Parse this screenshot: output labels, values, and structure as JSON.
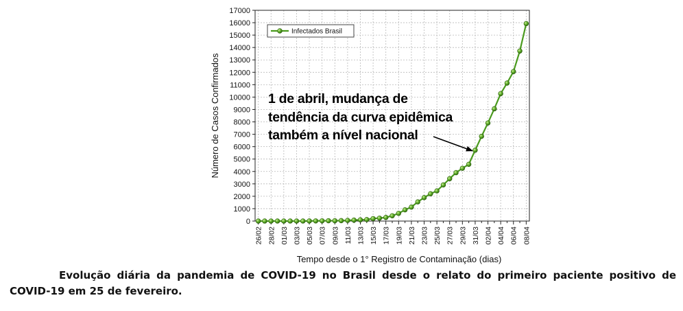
{
  "chart_data": {
    "type": "line",
    "xlabel": "Tempo desde o 1° Registro de Contaminação (dias)",
    "ylabel": "Número de Casos Confirmados",
    "ylim": [
      0,
      17000
    ],
    "yticks": [
      0,
      1000,
      2000,
      3000,
      4000,
      5000,
      6000,
      7000,
      8000,
      9000,
      10000,
      11000,
      12000,
      13000,
      14000,
      15000,
      16000,
      17000
    ],
    "categories": [
      "26/02",
      "27/02",
      "28/02",
      "29/02",
      "01/03",
      "02/03",
      "03/03",
      "04/03",
      "05/03",
      "06/03",
      "07/03",
      "08/03",
      "09/03",
      "10/03",
      "11/03",
      "12/03",
      "13/03",
      "14/03",
      "15/03",
      "16/03",
      "17/03",
      "18/03",
      "19/03",
      "20/03",
      "21/03",
      "22/03",
      "23/03",
      "24/03",
      "25/03",
      "26/03",
      "27/03",
      "28/03",
      "29/03",
      "30/03",
      "31/03",
      "01/04",
      "02/04",
      "03/04",
      "04/04",
      "05/04",
      "06/04",
      "07/04",
      "08/04"
    ],
    "xtick_labels": [
      "26/02",
      "28/02",
      "01/03",
      "03/03",
      "05/03",
      "07/03",
      "09/03",
      "11/03",
      "13/03",
      "15/03",
      "17/03",
      "19/03",
      "21/03",
      "23/03",
      "25/03",
      "27/03",
      "29/03",
      "31/03",
      "02/04",
      "04/04",
      "06/04",
      "08/04"
    ],
    "series": [
      {
        "name": "Infectados Brasil",
        "color": "#4a9a1e",
        "values": [
          1,
          1,
          1,
          2,
          2,
          2,
          2,
          3,
          8,
          13,
          19,
          25,
          25,
          34,
          52,
          77,
          98,
          121,
          200,
          234,
          291,
          428,
          621,
          904,
          1128,
          1546,
          1891,
          2201,
          2433,
          2915,
          3417,
          3904,
          4256,
          4579,
          5717,
          6836,
          7910,
          9056,
          10278,
          11130,
          12056,
          13717,
          15927
        ]
      }
    ],
    "legend_position": "top-left",
    "grid": true,
    "annotation": {
      "lines": [
        "1 de abril, mudança de",
        "tendência da curva epidêmica",
        "também a nível nacional"
      ],
      "target_category": "31/03"
    }
  },
  "caption": "Evolução diária da pandemia de COVID-19 no Brasil desde o relato do primeiro paciente positivo de COVID-19 em 25 de fevereiro."
}
